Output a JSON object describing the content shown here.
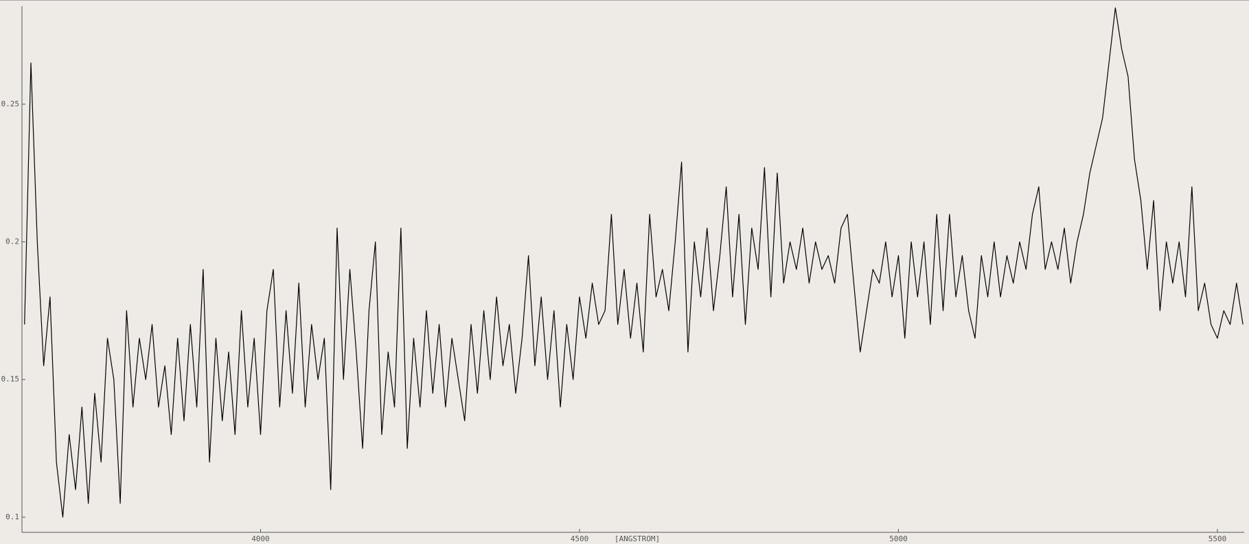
{
  "chart_data": {
    "type": "line",
    "x_label": "[ANGSTROM]",
    "color": "#000000",
    "x": [
      3630,
      3640,
      3650,
      3660,
      3670,
      3680,
      3690,
      3700,
      3710,
      3720,
      3730,
      3740,
      3750,
      3760,
      3770,
      3780,
      3790,
      3800,
      3810,
      3820,
      3830,
      3840,
      3850,
      3860,
      3870,
      3880,
      3890,
      3900,
      3910,
      3920,
      3930,
      3940,
      3950,
      3960,
      3970,
      3980,
      3990,
      4000,
      4010,
      4020,
      4030,
      4040,
      4050,
      4060,
      4070,
      4080,
      4090,
      4100,
      4110,
      4120,
      4130,
      4140,
      4150,
      4160,
      4170,
      4180,
      4190,
      4200,
      4210,
      4220,
      4230,
      4240,
      4250,
      4260,
      4270,
      4280,
      4290,
      4300,
      4310,
      4320,
      4330,
      4340,
      4350,
      4360,
      4370,
      4380,
      4390,
      4400,
      4410,
      4420,
      4430,
      4440,
      4450,
      4460,
      4470,
      4480,
      4490,
      4500,
      4510,
      4520,
      4530,
      4540,
      4550,
      4560,
      4570,
      4580,
      4590,
      4600,
      4610,
      4620,
      4630,
      4640,
      4650,
      4660,
      4670,
      4680,
      4690,
      4700,
      4710,
      4720,
      4730,
      4740,
      4750,
      4760,
      4770,
      4780,
      4790,
      4800,
      4810,
      4820,
      4830,
      4840,
      4850,
      4860,
      4870,
      4880,
      4890,
      4900,
      4910,
      4920,
      4930,
      4940,
      4950,
      4960,
      4970,
      4980,
      4990,
      5000,
      5010,
      5020,
      5030,
      5040,
      5050,
      5060,
      5070,
      5080,
      5090,
      5100,
      5110,
      5120,
      5130,
      5140,
      5150,
      5160,
      5170,
      5180,
      5190,
      5200,
      5210,
      5220,
      5230,
      5240,
      5250,
      5260,
      5270,
      5280,
      5290,
      5300,
      5310,
      5320,
      5330,
      5340,
      5350,
      5360,
      5370,
      5380,
      5390,
      5400,
      5410,
      5420,
      5430,
      5440,
      5450,
      5460,
      5470,
      5480,
      5490,
      5500,
      5510,
      5520,
      5530,
      5540
    ],
    "values": [
      0.17,
      0.265,
      0.2,
      0.155,
      0.18,
      0.12,
      0.1,
      0.13,
      0.11,
      0.14,
      0.105,
      0.145,
      0.12,
      0.165,
      0.15,
      0.105,
      0.175,
      0.14,
      0.165,
      0.15,
      0.17,
      0.14,
      0.155,
      0.13,
      0.165,
      0.135,
      0.17,
      0.14,
      0.19,
      0.12,
      0.165,
      0.135,
      0.16,
      0.13,
      0.175,
      0.14,
      0.165,
      0.13,
      0.175,
      0.19,
      0.14,
      0.175,
      0.145,
      0.185,
      0.14,
      0.17,
      0.15,
      0.165,
      0.11,
      0.205,
      0.15,
      0.19,
      0.16,
      0.125,
      0.175,
      0.2,
      0.13,
      0.16,
      0.14,
      0.205,
      0.125,
      0.165,
      0.14,
      0.175,
      0.145,
      0.17,
      0.14,
      0.165,
      0.15,
      0.135,
      0.17,
      0.145,
      0.175,
      0.15,
      0.18,
      0.155,
      0.17,
      0.145,
      0.165,
      0.195,
      0.155,
      0.18,
      0.15,
      0.175,
      0.14,
      0.17,
      0.15,
      0.18,
      0.165,
      0.185,
      0.17,
      0.175,
      0.21,
      0.17,
      0.19,
      0.165,
      0.185,
      0.16,
      0.21,
      0.18,
      0.19,
      0.175,
      0.2,
      0.229,
      0.16,
      0.2,
      0.18,
      0.205,
      0.175,
      0.195,
      0.22,
      0.18,
      0.21,
      0.17,
      0.205,
      0.19,
      0.227,
      0.18,
      0.225,
      0.185,
      0.2,
      0.19,
      0.205,
      0.185,
      0.2,
      0.19,
      0.195,
      0.185,
      0.205,
      0.21,
      0.185,
      0.16,
      0.175,
      0.19,
      0.185,
      0.2,
      0.18,
      0.195,
      0.165,
      0.2,
      0.18,
      0.2,
      0.17,
      0.21,
      0.175,
      0.21,
      0.18,
      0.195,
      0.175,
      0.165,
      0.195,
      0.18,
      0.2,
      0.18,
      0.195,
      0.185,
      0.2,
      0.19,
      0.21,
      0.22,
      0.19,
      0.2,
      0.19,
      0.205,
      0.185,
      0.2,
      0.21,
      0.225,
      0.235,
      0.245,
      0.265,
      0.285,
      0.27,
      0.26,
      0.23,
      0.215,
      0.19,
      0.215,
      0.175,
      0.2,
      0.185,
      0.2,
      0.18,
      0.22,
      0.175,
      0.185,
      0.17,
      0.165,
      0.175,
      0.17,
      0.185,
      0.17
    ],
    "xlim": [
      3626,
      5542
    ],
    "ylim": [
      0.0945,
      0.2856
    ],
    "xticks": [
      4000,
      4500,
      5000,
      5500
    ],
    "yticks": [
      0.1,
      0.15,
      0.2,
      0.25
    ]
  }
}
